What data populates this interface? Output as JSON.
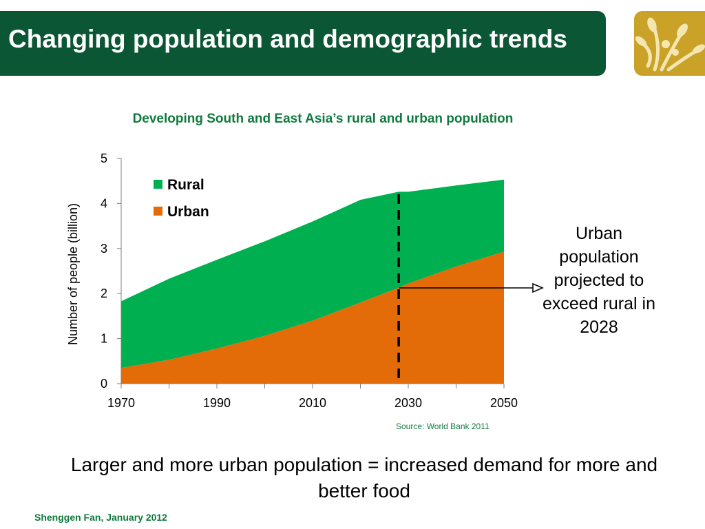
{
  "slide": {
    "title": "Changing population and demographic trends",
    "annotation": "Urban population projected to exceed rural in 2028",
    "source": "Source: World Bank 2011",
    "takeaway": "Larger and more urban population = increased demand for more and better food",
    "footer": "Shenggen Fan, January 2012"
  },
  "colors": {
    "banner": "#0b5635",
    "logo": "#c9a227",
    "rural": "#00b050",
    "urban": "#e36c09",
    "accent_text": "#0f7a3d"
  },
  "chart_data": {
    "type": "area",
    "stacked": true,
    "title": "Developing South and East Asia’s rural and urban population",
    "xlabel": "",
    "ylabel": "Number of people (billion)",
    "x": [
      1970,
      1980,
      1990,
      2000,
      2010,
      2020,
      2028,
      2030,
      2040,
      2050
    ],
    "xlim": [
      1970,
      2050
    ],
    "ylim": [
      0,
      5
    ],
    "xticks": [
      "1970",
      "1990",
      "2010",
      "2030",
      "2050"
    ],
    "yticks": [
      "0",
      "1",
      "2",
      "3",
      "4",
      "5"
    ],
    "series": [
      {
        "name": "Urban",
        "values": [
          0.35,
          0.53,
          0.78,
          1.06,
          1.4,
          1.8,
          2.13,
          2.22,
          2.6,
          2.93
        ]
      },
      {
        "name": "Rural",
        "values": [
          1.48,
          1.8,
          1.97,
          2.1,
          2.2,
          2.28,
          2.13,
          2.04,
          1.8,
          1.6
        ]
      }
    ],
    "marker": {
      "x": 2028,
      "style": "dashed vertical line"
    },
    "legend": "top-left",
    "grid": false
  }
}
